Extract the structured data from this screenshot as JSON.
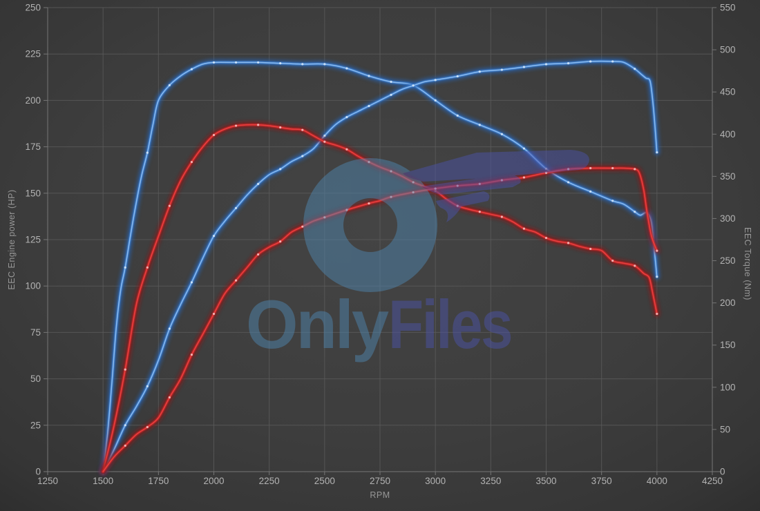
{
  "watermark": {
    "part1": "Only",
    "part2": "Files",
    "blue": "#4f87b2",
    "purple": "#4c54ab",
    "opacity": 0.48
  },
  "colors": {
    "background_center": "#444444",
    "background_edge": "#2d2d2d",
    "grid": "#5a5a5a",
    "axis": "#767676",
    "tick_label": "#b3b3b3",
    "axis_title": "#979797",
    "blue_core": "#8abaee",
    "blue_mid": "#3f83d6",
    "blue_glow": "#2563b4",
    "blue_marker": "#d2e5f8",
    "red_core": "#e84040",
    "red_mid": "#c62525",
    "red_glow": "#8d1414",
    "red_marker": "#f6bdbd"
  },
  "chart_data": {
    "type": "line",
    "title": "",
    "legend": "none",
    "grid": true,
    "x_axis": {
      "label": "RPM",
      "min": 1250,
      "max": 4250,
      "step": 250,
      "ticks": [
        1250,
        1500,
        1750,
        2000,
        2250,
        2500,
        2750,
        3000,
        3250,
        3500,
        3750,
        4000,
        4250
      ]
    },
    "y_left": {
      "label": "EEC Engine power (HP)",
      "min": 0,
      "max": 250,
      "step": 25,
      "ticks": [
        0,
        25,
        50,
        75,
        100,
        125,
        150,
        175,
        200,
        225,
        250
      ]
    },
    "y_right": {
      "label": "EEC Torque (Nm)",
      "min": 0,
      "max": 550,
      "step": 50,
      "ticks": [
        0,
        50,
        100,
        150,
        200,
        250,
        300,
        350,
        400,
        450,
        500,
        550
      ]
    },
    "series": [
      {
        "name": "torque-blue",
        "color_set": "blue",
        "axis": "right",
        "unit": "Nm",
        "peak": {
          "rpm": 2050,
          "value": 485
        },
        "points": [
          [
            1500,
            0
          ],
          [
            1520,
            44
          ],
          [
            1540,
            106
          ],
          [
            1560,
            172
          ],
          [
            1580,
            216
          ],
          [
            1600,
            242
          ],
          [
            1625,
            282
          ],
          [
            1650,
            319
          ],
          [
            1675,
            352
          ],
          [
            1700,
            378
          ],
          [
            1725,
            411
          ],
          [
            1750,
            440
          ],
          [
            1800,
            458
          ],
          [
            1850,
            469
          ],
          [
            1900,
            477
          ],
          [
            1950,
            483
          ],
          [
            2000,
            485
          ],
          [
            2100,
            485
          ],
          [
            2200,
            485
          ],
          [
            2300,
            484
          ],
          [
            2400,
            483
          ],
          [
            2500,
            483
          ],
          [
            2600,
            478
          ],
          [
            2700,
            469
          ],
          [
            2800,
            462
          ],
          [
            2900,
            458
          ],
          [
            3000,
            440
          ],
          [
            3100,
            422
          ],
          [
            3200,
            411
          ],
          [
            3300,
            400
          ],
          [
            3400,
            383
          ],
          [
            3500,
            359
          ],
          [
            3600,
            343
          ],
          [
            3700,
            332
          ],
          [
            3800,
            321
          ],
          [
            3850,
            317
          ],
          [
            3900,
            308
          ],
          [
            3925,
            304
          ],
          [
            3955,
            307
          ],
          [
            3975,
            295
          ],
          [
            3990,
            258
          ],
          [
            4000,
            231
          ]
        ]
      },
      {
        "name": "power-blue",
        "color_set": "blue",
        "axis": "left",
        "unit": "HP",
        "peak": {
          "rpm": 3780,
          "value": 221
        },
        "points": [
          [
            1500,
            0
          ],
          [
            1550,
            12
          ],
          [
            1600,
            25
          ],
          [
            1650,
            35
          ],
          [
            1700,
            46
          ],
          [
            1750,
            60
          ],
          [
            1800,
            77
          ],
          [
            1850,
            90
          ],
          [
            1900,
            102
          ],
          [
            1950,
            115
          ],
          [
            2000,
            127
          ],
          [
            2050,
            135
          ],
          [
            2100,
            142
          ],
          [
            2150,
            149
          ],
          [
            2200,
            155
          ],
          [
            2250,
            160
          ],
          [
            2300,
            163
          ],
          [
            2350,
            167
          ],
          [
            2400,
            170
          ],
          [
            2450,
            174
          ],
          [
            2500,
            181
          ],
          [
            2550,
            187
          ],
          [
            2600,
            191
          ],
          [
            2650,
            194
          ],
          [
            2700,
            197
          ],
          [
            2750,
            200
          ],
          [
            2800,
            203
          ],
          [
            2850,
            206
          ],
          [
            2900,
            208
          ],
          [
            2950,
            210
          ],
          [
            3000,
            211
          ],
          [
            3100,
            213
          ],
          [
            3200,
            215.5
          ],
          [
            3300,
            216.5
          ],
          [
            3400,
            218
          ],
          [
            3500,
            219.5
          ],
          [
            3600,
            220
          ],
          [
            3700,
            221
          ],
          [
            3800,
            221
          ],
          [
            3850,
            220.5
          ],
          [
            3900,
            217
          ],
          [
            3930,
            214
          ],
          [
            3950,
            212
          ],
          [
            3970,
            210
          ],
          [
            3985,
            195
          ],
          [
            4000,
            172
          ]
        ]
      },
      {
        "name": "torque-red",
        "color_set": "red",
        "axis": "right",
        "unit": "Nm",
        "peak": {
          "rpm": 2175,
          "value": 411
        },
        "points": [
          [
            1500,
            0
          ],
          [
            1550,
            55
          ],
          [
            1600,
            121
          ],
          [
            1650,
            198
          ],
          [
            1700,
            242
          ],
          [
            1750,
            279
          ],
          [
            1800,
            315
          ],
          [
            1850,
            345
          ],
          [
            1900,
            367
          ],
          [
            1950,
            385
          ],
          [
            2000,
            399
          ],
          [
            2050,
            406
          ],
          [
            2100,
            410
          ],
          [
            2150,
            411
          ],
          [
            2200,
            411
          ],
          [
            2250,
            410
          ],
          [
            2300,
            408
          ],
          [
            2350,
            406
          ],
          [
            2400,
            405
          ],
          [
            2450,
            398
          ],
          [
            2500,
            391
          ],
          [
            2550,
            387
          ],
          [
            2600,
            382
          ],
          [
            2650,
            374
          ],
          [
            2700,
            367
          ],
          [
            2750,
            361
          ],
          [
            2800,
            356
          ],
          [
            2850,
            350
          ],
          [
            2900,
            343
          ],
          [
            2950,
            338
          ],
          [
            3000,
            333
          ],
          [
            3050,
            323
          ],
          [
            3100,
            315
          ],
          [
            3150,
            311
          ],
          [
            3200,
            308
          ],
          [
            3250,
            305
          ],
          [
            3300,
            302
          ],
          [
            3350,
            296
          ],
          [
            3400,
            288
          ],
          [
            3450,
            284
          ],
          [
            3500,
            277
          ],
          [
            3550,
            273
          ],
          [
            3600,
            271
          ],
          [
            3650,
            267
          ],
          [
            3700,
            264
          ],
          [
            3750,
            262
          ],
          [
            3800,
            250
          ],
          [
            3850,
            247
          ],
          [
            3900,
            244
          ],
          [
            3940,
            235
          ],
          [
            3965,
            230
          ],
          [
            3980,
            213
          ],
          [
            4000,
            187
          ]
        ]
      },
      {
        "name": "power-red",
        "color_set": "red",
        "axis": "left",
        "unit": "HP",
        "peak": {
          "rpm": 3800,
          "value": 163.5
        },
        "points": [
          [
            1500,
            0
          ],
          [
            1550,
            8
          ],
          [
            1600,
            14
          ],
          [
            1650,
            20
          ],
          [
            1700,
            24
          ],
          [
            1750,
            29
          ],
          [
            1800,
            40
          ],
          [
            1850,
            50
          ],
          [
            1900,
            63
          ],
          [
            1950,
            74
          ],
          [
            2000,
            85
          ],
          [
            2050,
            96
          ],
          [
            2100,
            103
          ],
          [
            2150,
            110
          ],
          [
            2200,
            117
          ],
          [
            2250,
            121
          ],
          [
            2300,
            124
          ],
          [
            2350,
            129
          ],
          [
            2400,
            132
          ],
          [
            2450,
            135
          ],
          [
            2500,
            137
          ],
          [
            2600,
            141
          ],
          [
            2700,
            144.5
          ],
          [
            2750,
            146
          ],
          [
            2800,
            148
          ],
          [
            2900,
            150.5
          ],
          [
            3000,
            152.5
          ],
          [
            3100,
            154
          ],
          [
            3200,
            155
          ],
          [
            3300,
            157
          ],
          [
            3400,
            158.5
          ],
          [
            3500,
            161
          ],
          [
            3600,
            163
          ],
          [
            3700,
            163.5
          ],
          [
            3800,
            163.5
          ],
          [
            3850,
            163.5
          ],
          [
            3900,
            163
          ],
          [
            3920,
            161
          ],
          [
            3940,
            152
          ],
          [
            3955,
            140
          ],
          [
            3975,
            127
          ],
          [
            4000,
            119
          ]
        ]
      }
    ]
  }
}
